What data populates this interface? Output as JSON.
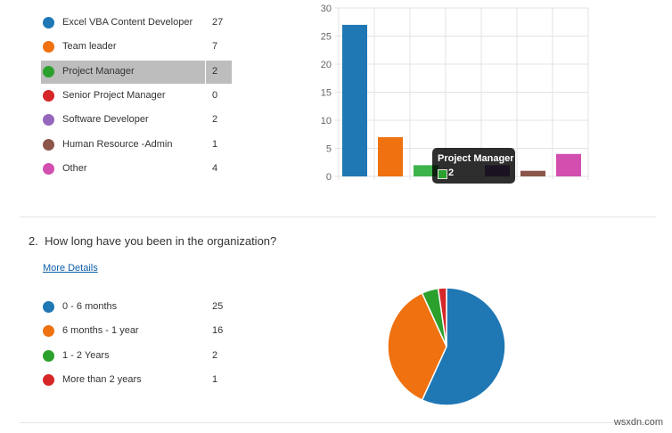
{
  "q1": {
    "options": [
      {
        "label": "Excel VBA Content Developer",
        "count": "27",
        "color": "#1f77b4"
      },
      {
        "label": "Team leader",
        "count": "7",
        "color": "#ef7110"
      },
      {
        "label": "Project Manager",
        "count": "2",
        "color": "#2ca02c"
      },
      {
        "label": "Senior Project Manager",
        "count": "0",
        "color": "#d62728"
      },
      {
        "label": "Software Developer",
        "count": "2",
        "color": "#9467bd"
      },
      {
        "label": "Human Resource -Admin",
        "count": "1",
        "color": "#8c564b"
      },
      {
        "label": "Other",
        "count": "4",
        "color": "#d24fb0"
      }
    ],
    "highlighted_index": 2
  },
  "chart_data": [
    {
      "type": "bar",
      "categories": [
        "Excel VBA Content Developer",
        "Team leader",
        "Project Manager",
        "Senior Project Manager",
        "Software Developer",
        "Human Resource -Admin",
        "Other"
      ],
      "values": [
        27,
        7,
        2,
        0,
        2,
        1,
        4
      ],
      "ylim": [
        0,
        30
      ],
      "yticks": [
        "0",
        "5",
        "10",
        "15",
        "20",
        "25",
        "30"
      ],
      "grid": true,
      "colors": [
        "#1f77b4",
        "#ef7110",
        "#3cb44b",
        "#d62728",
        "#9467bd",
        "#8c564b",
        "#d24fb0"
      ],
      "tooltip": {
        "title": "Project Manager",
        "value": "2"
      }
    },
    {
      "type": "pie",
      "categories": [
        "0 - 6 months",
        "6 months - 1 year",
        "1 - 2 Years",
        "More than 2 years"
      ],
      "values": [
        25,
        16,
        2,
        1
      ],
      "colors": [
        "#1f77b4",
        "#ef7110",
        "#2ca02c",
        "#d62728"
      ]
    }
  ],
  "q2": {
    "number": "2.",
    "title": "How long have you been in the organization?",
    "more_details": "More Details",
    "options": [
      {
        "label": "0 - 6 months",
        "count": "25",
        "color": "#1f77b4"
      },
      {
        "label": "6 months - 1 year",
        "count": "16",
        "color": "#ef7110"
      },
      {
        "label": "1 - 2 Years",
        "count": "2",
        "color": "#2ca02c"
      },
      {
        "label": "More than 2 years",
        "count": "1",
        "color": "#d62728"
      }
    ]
  },
  "watermark": "wsxdn.com"
}
